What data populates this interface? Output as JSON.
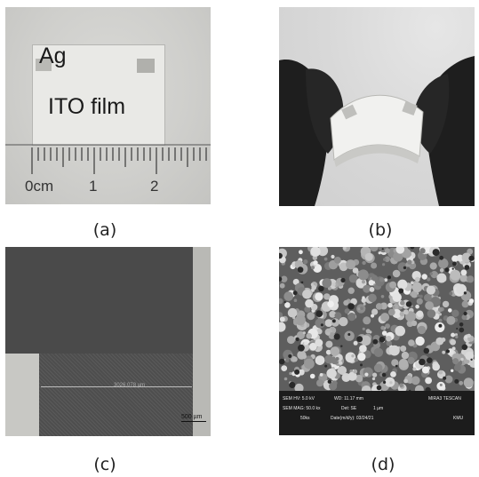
{
  "panels": [
    {
      "caption": "(a)",
      "labels": {
        "ag": "Ag",
        "ito": "ITO film"
      },
      "ruler": {
        "unit_label": "0cm",
        "marks": [
          "1",
          "2"
        ]
      }
    },
    {
      "caption": "(b)"
    },
    {
      "caption": "(c)",
      "measurement": "3026.078 µm",
      "scale_bar": "500 µm"
    },
    {
      "caption": "(d)",
      "sem_bar": {
        "hv": "SEM HV: 5.0 kV",
        "wd": "WD: 11.17 mm",
        "brand": "MIRA3 TESCAN",
        "mag": "SEM MAG: 50.0 kx",
        "det": "Det: SE",
        "scale": "1 µm",
        "view": "50ks",
        "date": "Date(m/d/y): 03/24/21",
        "org": "KMU"
      }
    }
  ],
  "colors": {
    "background": "#ffffff",
    "caption": "#222222"
  }
}
